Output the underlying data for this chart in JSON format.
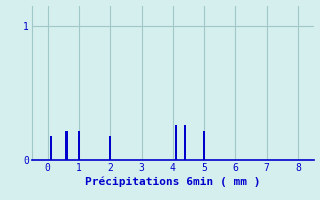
{
  "title": "",
  "xlabel": "Précipitations 6min ( mm )",
  "ylabel": "",
  "background_color": "#d5efee",
  "bar_color": "#0000cc",
  "xlim": [
    -0.5,
    8.5
  ],
  "ylim": [
    0,
    1.15
  ],
  "yticks": [
    0,
    1
  ],
  "xticks": [
    0,
    1,
    2,
    3,
    4,
    5,
    6,
    7,
    8
  ],
  "grid_color": "#a0c8c8",
  "bar_positions": [
    0.1,
    0.6,
    1.0,
    2.0,
    4.1,
    4.4,
    5.0
  ],
  "bar_heights": [
    0.18,
    0.22,
    0.22,
    0.18,
    0.26,
    0.26,
    0.22
  ],
  "bar_width": 0.07
}
